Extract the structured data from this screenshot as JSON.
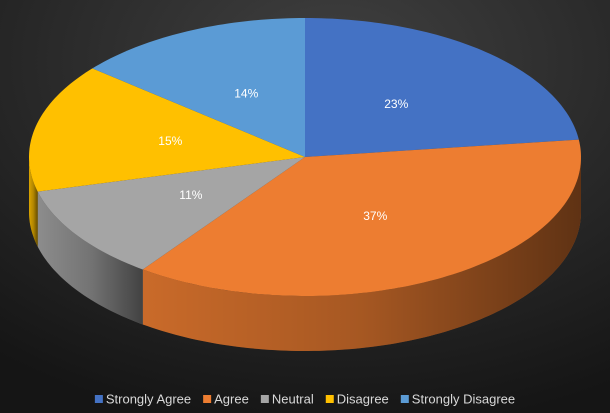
{
  "chart_data": {
    "type": "pie",
    "categories": [
      "Strongly Agree",
      "Agree",
      "Neutral",
      "Disagree",
      "Strongly Disagree"
    ],
    "values": [
      23,
      37,
      11,
      15,
      14
    ],
    "value_labels": [
      "23%",
      "37%",
      "11%",
      "15%",
      "14%"
    ],
    "colors": [
      "#4472c4",
      "#ed7d31",
      "#a5a5a5",
      "#ffc000",
      "#5b9bd5"
    ],
    "legend": "bottom"
  }
}
